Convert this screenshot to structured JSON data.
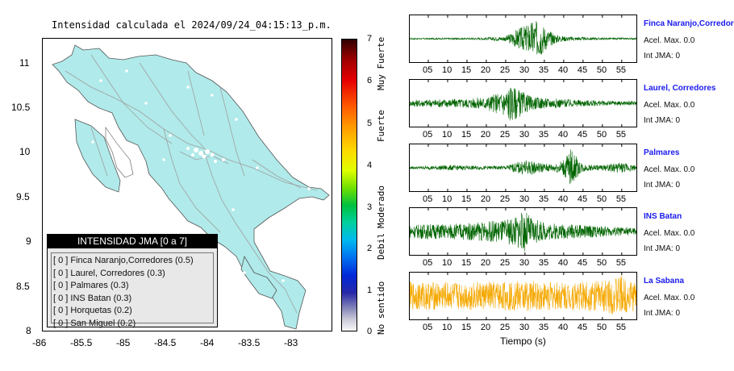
{
  "map_title": "Intensidad calculada el 2024/09/24_04:15:13_p.m.",
  "map": {
    "land_color": "#b0eaea",
    "road_color": "#a0a0a0",
    "x_ticks": [
      "-86",
      "-85.5",
      "-85",
      "-84.5",
      "-84",
      "-83.5",
      "-83"
    ],
    "y_ticks": [
      "11",
      "10.5",
      "10",
      "9.5",
      "9",
      "8.5",
      "8"
    ]
  },
  "legend": {
    "title": "INTENSIDAD JMA [0 a 7]",
    "items": [
      "[ 0 ]  Finca Naranjo,Corredores (0.5)",
      "[ 0 ]  Laurel, Corredores (0.3)",
      "[ 0 ]  Palmares (0.3)",
      "[ 0 ]  INS Batan (0.3)",
      "[ 0 ]  Horquetas (0.2)",
      "[ 0 ]  San Miguel (0.2)"
    ]
  },
  "colorbar": {
    "ticks": [
      "7",
      "6",
      "5",
      "4",
      "3",
      "2",
      "1",
      "0"
    ],
    "words": [
      "Muy Fuerte",
      "Fuerte",
      "Moderado",
      "Debil",
      "No sentido"
    ]
  },
  "stations": [
    {
      "name": "Finca Naranjo,Corredor",
      "acc": "Acel. Max. 0.0",
      "int": "Int JMA: 0",
      "color": "#006400"
    },
    {
      "name": "Laurel, Corredores",
      "acc": "Acel. Max. 0.0",
      "int": "Int JMA: 0",
      "color": "#006400"
    },
    {
      "name": "Palmares",
      "acc": "Acel. Max. 0.0",
      "int": "Int JMA: 0",
      "color": "#006400"
    },
    {
      "name": "INS Batan",
      "acc": "Acel. Max. 0.0",
      "int": "Int JMA: 0",
      "color": "#006400"
    },
    {
      "name": "La Sabana",
      "acc": "Acel. Max. 0.0",
      "int": "Int JMA: 0",
      "color": "#f5a800"
    }
  ],
  "wave_x_ticks": [
    "05",
    "10",
    "15",
    "20",
    "25",
    "30",
    "35",
    "40",
    "45",
    "50",
    "55"
  ],
  "wave_xlabel": "Tiempo (s)",
  "chart_data": [
    {
      "type": "line",
      "title": "Finca Naranjo,Corredor",
      "xlabel": "",
      "xlim": [
        0,
        59
      ],
      "x_ticks": [
        5,
        10,
        15,
        20,
        25,
        30,
        35,
        40,
        45,
        50,
        55
      ],
      "envelope": {
        "x": [
          0,
          5,
          10,
          15,
          20,
          25,
          28,
          30,
          32,
          34,
          36,
          38,
          40,
          45,
          50,
          55,
          59
        ],
        "amplitude": [
          0.03,
          0.03,
          0.04,
          0.04,
          0.06,
          0.12,
          0.45,
          0.6,
          0.85,
          0.8,
          0.4,
          0.2,
          0.12,
          0.07,
          0.05,
          0.04,
          0.04
        ]
      }
    },
    {
      "type": "line",
      "title": "Laurel, Corredores",
      "xlabel": "",
      "xlim": [
        0,
        59
      ],
      "x_ticks": [
        5,
        10,
        15,
        20,
        25,
        30,
        35,
        40,
        45,
        50,
        55
      ],
      "envelope": {
        "x": [
          0,
          5,
          10,
          15,
          20,
          24,
          26,
          28,
          30,
          32,
          35,
          40,
          45,
          50,
          55,
          59
        ],
        "amplitude": [
          0.15,
          0.18,
          0.2,
          0.22,
          0.3,
          0.55,
          0.85,
          0.7,
          0.45,
          0.3,
          0.25,
          0.2,
          0.15,
          0.12,
          0.1,
          0.1
        ]
      }
    },
    {
      "type": "line",
      "title": "Palmares",
      "xlabel": "",
      "xlim": [
        0,
        59
      ],
      "x_ticks": [
        5,
        10,
        15,
        20,
        25,
        30,
        35,
        40,
        45,
        50,
        55
      ],
      "envelope": {
        "x": [
          0,
          5,
          10,
          15,
          20,
          25,
          28,
          30,
          32,
          35,
          38,
          40,
          42,
          44,
          46,
          50,
          55,
          59
        ],
        "amplitude": [
          0.05,
          0.08,
          0.12,
          0.1,
          0.08,
          0.1,
          0.25,
          0.35,
          0.3,
          0.2,
          0.2,
          0.4,
          0.9,
          0.3,
          0.15,
          0.12,
          0.25,
          0.1
        ]
      }
    },
    {
      "type": "line",
      "title": "INS Batan",
      "xlabel": "",
      "xlim": [
        0,
        59
      ],
      "x_ticks": [
        5,
        10,
        15,
        20,
        25,
        30,
        35,
        40,
        45,
        50,
        55
      ],
      "envelope": {
        "x": [
          0,
          5,
          10,
          15,
          20,
          25,
          28,
          30,
          32,
          35,
          40,
          45,
          50,
          55,
          59
        ],
        "amplitude": [
          0.3,
          0.35,
          0.35,
          0.4,
          0.45,
          0.55,
          0.75,
          0.95,
          0.6,
          0.4,
          0.35,
          0.3,
          0.25,
          0.2,
          0.15
        ]
      }
    },
    {
      "type": "line",
      "title": "La Sabana",
      "xlabel": "Tiempo (s)",
      "xlim": [
        0,
        59
      ],
      "x_ticks": [
        5,
        10,
        15,
        20,
        25,
        30,
        35,
        40,
        45,
        50,
        55
      ],
      "envelope": {
        "x": [
          0,
          10,
          20,
          30,
          40,
          50,
          55,
          57,
          59
        ],
        "amplitude": [
          0.65,
          0.65,
          0.65,
          0.7,
          0.65,
          0.7,
          0.95,
          0.75,
          0.7
        ]
      }
    }
  ]
}
